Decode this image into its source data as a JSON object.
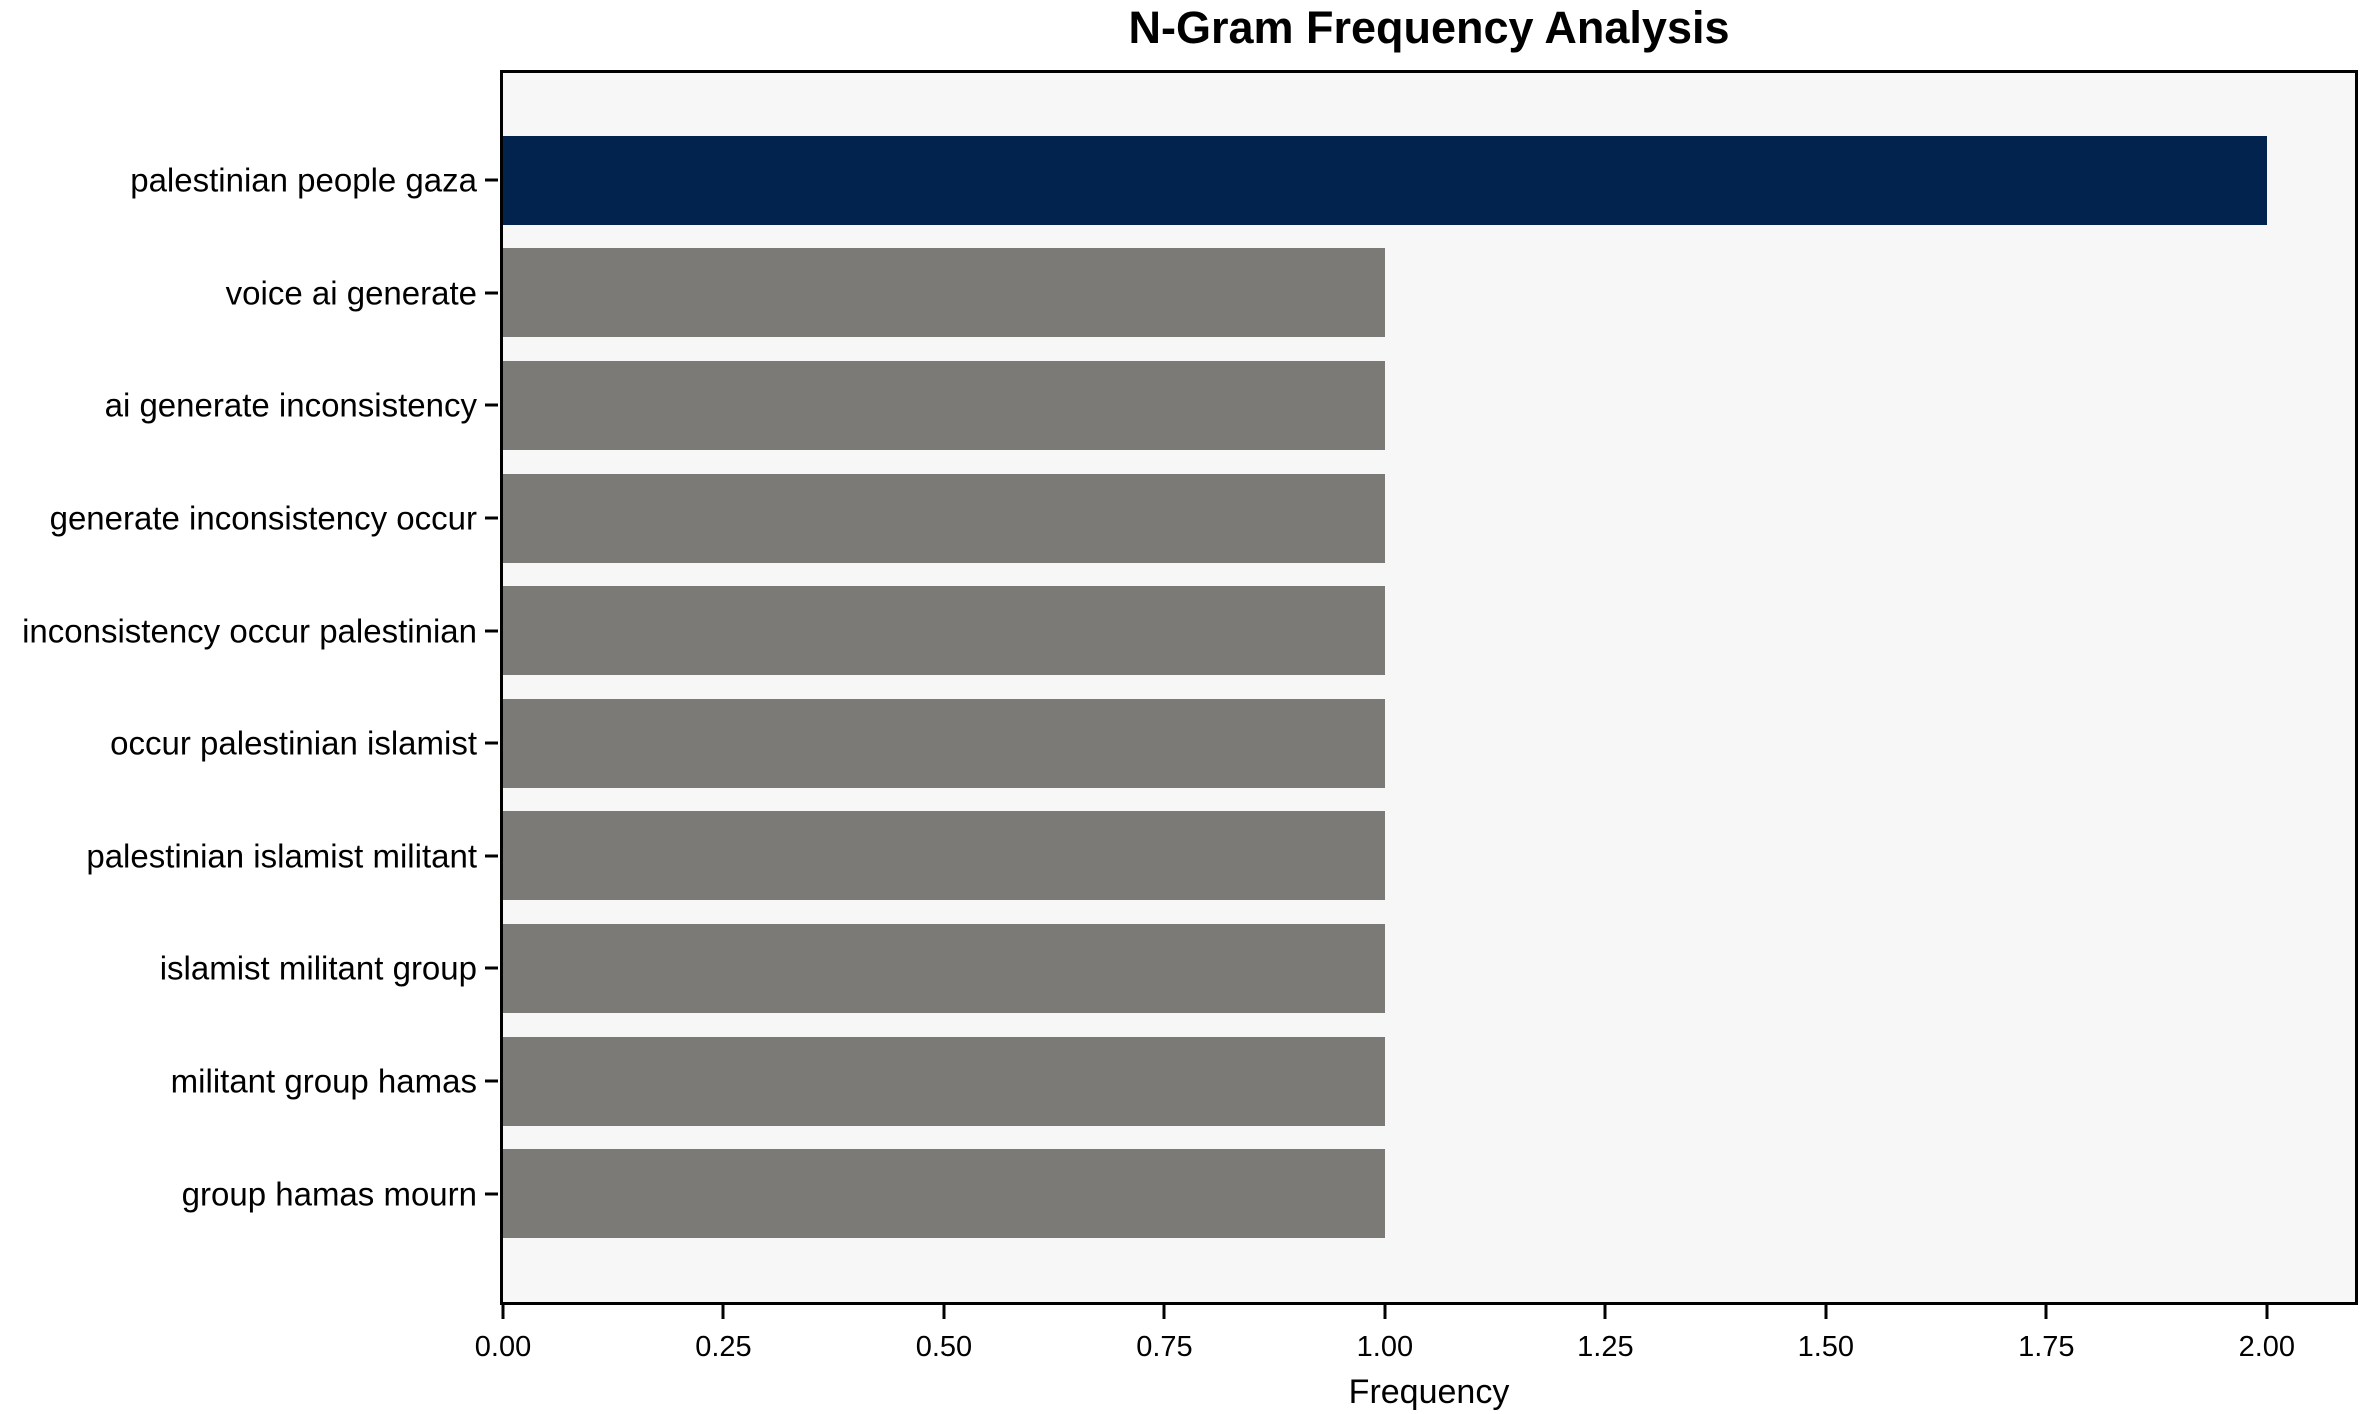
{
  "chart_data": {
    "type": "bar",
    "orientation": "horizontal",
    "title": "N-Gram Frequency Analysis",
    "xlabel": "Frequency",
    "ylabel": "",
    "categories": [
      "palestinian people gaza",
      "voice ai generate",
      "ai generate inconsistency",
      "generate inconsistency occur",
      "inconsistency occur palestinian",
      "occur palestinian islamist",
      "palestinian islamist militant",
      "islamist militant group",
      "militant group hamas",
      "group hamas mourn"
    ],
    "values": [
      2.0,
      1.0,
      1.0,
      1.0,
      1.0,
      1.0,
      1.0,
      1.0,
      1.0,
      1.0
    ],
    "bar_colors": [
      "#02234e",
      "#7c7a76",
      "#7c7a76",
      "#7c7a76",
      "#7c7a76",
      "#7c7a76",
      "#7c7a76",
      "#7c7a76",
      "#7c7a76",
      "#7c7a76"
    ],
    "xlim": [
      0,
      2.1
    ],
    "xticks": [
      0,
      0.25,
      0.5,
      0.75,
      1.0,
      1.25,
      1.5,
      1.75,
      2.0
    ],
    "xtick_labels": [
      "0.00",
      "0.25",
      "0.50",
      "0.75",
      "1.00",
      "1.25",
      "1.50",
      "1.75",
      "2.00"
    ],
    "grid": false,
    "legend": null,
    "plot_background": "#f7f7f7",
    "figure_background": "#ffffff",
    "spine_color": "#000000"
  }
}
